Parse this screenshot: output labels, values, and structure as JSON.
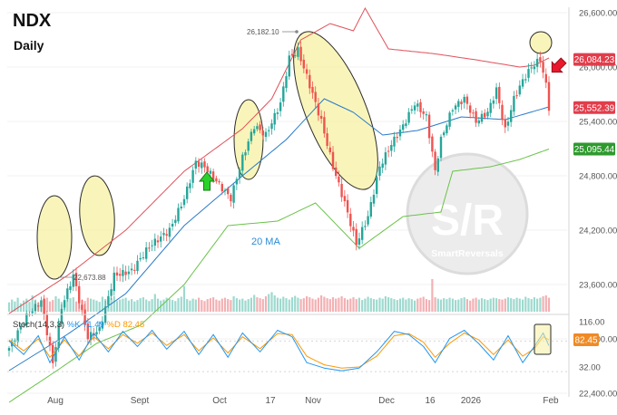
{
  "header": {
    "title": "NDX",
    "subtitle": "Daily"
  },
  "price_ticks": [
    "26,600.00",
    "26,000.00",
    "25,400.00",
    "24,800.00",
    "24,200.00",
    "23,600.00",
    "23,000.00",
    "22,400.00"
  ],
  "stoch_ticks": [
    "116.00",
    "32.00"
  ],
  "x_ticks": [
    "Aug",
    "Sept",
    "Oct",
    "17",
    "Nov",
    "Dec",
    "16",
    "2026",
    "Feb"
  ],
  "price_tags": [
    {
      "value": "26,084.23",
      "color": "#e23d4b"
    },
    {
      "value": "25,552.39",
      "color": "#e23d4b"
    },
    {
      "value": "25,095.44",
      "color": "#2e9a2e"
    }
  ],
  "stoch_tag": {
    "value": "82.45",
    "color": "#f08a24"
  },
  "annotations": {
    "high": "26,182.10",
    "low": "22,673.88",
    "ma_label": "20 MA"
  },
  "stoch": {
    "name": "Stoch(14,3,3)",
    "k_label": "%K 71.49",
    "d_label": "%D 82.45",
    "k_color": "#2196f3",
    "d_color": "#ff9800"
  },
  "watermark": {
    "logo": "S/R",
    "name": "SmartReversals"
  },
  "chart_data": {
    "type": "candlestick",
    "title": "NDX",
    "timeframe": "Daily",
    "y_range": [
      22200,
      26700
    ],
    "stoch_range": [
      20,
      116
    ],
    "x_tick_labels": [
      "Aug",
      "Sept",
      "Oct",
      "17",
      "Nov",
      "Dec",
      "16",
      "2026",
      "Feb"
    ],
    "price_path": [
      [
        0,
        22900
      ],
      [
        6,
        23250
      ],
      [
        11,
        23420
      ],
      [
        15,
        22730
      ],
      [
        18,
        23350
      ],
      [
        22,
        23700
      ],
      [
        27,
        23020
      ],
      [
        31,
        23100
      ],
      [
        36,
        23700
      ],
      [
        42,
        23750
      ],
      [
        48,
        24020
      ],
      [
        55,
        24200
      ],
      [
        60,
        24550
      ],
      [
        64,
        24950
      ],
      [
        67,
        24900
      ],
      [
        72,
        24700
      ],
      [
        76,
        24550
      ],
      [
        80,
        25000
      ],
      [
        84,
        25350
      ],
      [
        88,
        25250
      ],
      [
        93,
        25600
      ],
      [
        96,
        26100
      ],
      [
        99,
        26182.1
      ],
      [
        103,
        25800
      ],
      [
        107,
        25400
      ],
      [
        111,
        24900
      ],
      [
        115,
        24500
      ],
      [
        119,
        24050
      ],
      [
        123,
        24350
      ],
      [
        127,
        24900
      ],
      [
        131,
        25150
      ],
      [
        135,
        25350
      ],
      [
        139,
        25600
      ],
      [
        143,
        25450
      ],
      [
        146,
        24850
      ],
      [
        148,
        25200
      ],
      [
        152,
        25550
      ],
      [
        156,
        25650
      ],
      [
        160,
        25400
      ],
      [
        164,
        25500
      ],
      [
        167,
        25750
      ],
      [
        170,
        25300
      ],
      [
        173,
        25650
      ],
      [
        176,
        25850
      ],
      [
        179,
        26000
      ],
      [
        182,
        26084.23
      ],
      [
        184,
        25800
      ],
      [
        185,
        25552.39
      ]
    ],
    "series": [
      {
        "name": "20 MA",
        "color": "#2a7ac9",
        "points": [
          [
            0,
            22650
          ],
          [
            20,
            23050
          ],
          [
            40,
            23500
          ],
          [
            60,
            24250
          ],
          [
            80,
            24800
          ],
          [
            95,
            25200
          ],
          [
            108,
            25650
          ],
          [
            118,
            25500
          ],
          [
            128,
            25250
          ],
          [
            140,
            25300
          ],
          [
            155,
            25450
          ],
          [
            170,
            25420
          ],
          [
            185,
            25560
          ]
        ]
      },
      {
        "name": "upper band",
        "color": "#e0505a",
        "points": [
          [
            0,
            23280
          ],
          [
            20,
            23700
          ],
          [
            40,
            24200
          ],
          [
            60,
            24850
          ],
          [
            80,
            25320
          ],
          [
            90,
            25650
          ],
          [
            100,
            26300
          ],
          [
            110,
            26480
          ],
          [
            118,
            26400
          ],
          [
            122,
            26650
          ],
          [
            130,
            26200
          ],
          [
            145,
            26150
          ],
          [
            160,
            26080
          ],
          [
            175,
            26000
          ],
          [
            180,
            26020
          ],
          [
            185,
            26100
          ]
        ]
      },
      {
        "name": "lower band",
        "color": "#6ac24a",
        "points": [
          [
            0,
            22300
          ],
          [
            15,
            22620
          ],
          [
            30,
            22950
          ],
          [
            45,
            23150
          ],
          [
            60,
            23600
          ],
          [
            75,
            24250
          ],
          [
            92,
            24300
          ],
          [
            105,
            24500
          ],
          [
            120,
            24000
          ],
          [
            135,
            24350
          ],
          [
            148,
            24400
          ],
          [
            152,
            24850
          ],
          [
            165,
            24900
          ],
          [
            175,
            24980
          ],
          [
            185,
            25095.44
          ]
        ]
      }
    ],
    "stoch_k": [
      [
        0,
        80
      ],
      [
        5,
        55
      ],
      [
        10,
        90
      ],
      [
        14,
        40
      ],
      [
        19,
        88
      ],
      [
        24,
        45
      ],
      [
        29,
        95
      ],
      [
        34,
        60
      ],
      [
        39,
        98
      ],
      [
        44,
        70
      ],
      [
        49,
        100
      ],
      [
        54,
        65
      ],
      [
        60,
        98
      ],
      [
        65,
        55
      ],
      [
        70,
        92
      ],
      [
        75,
        50
      ],
      [
        80,
        95
      ],
      [
        86,
        60
      ],
      [
        92,
        100
      ],
      [
        97,
        88
      ],
      [
        102,
        40
      ],
      [
        108,
        30
      ],
      [
        114,
        25
      ],
      [
        120,
        30
      ],
      [
        126,
        60
      ],
      [
        132,
        98
      ],
      [
        137,
        92
      ],
      [
        142,
        70
      ],
      [
        146,
        40
      ],
      [
        151,
        85
      ],
      [
        156,
        100
      ],
      [
        161,
        75
      ],
      [
        166,
        45
      ],
      [
        171,
        90
      ],
      [
        176,
        40
      ],
      [
        180,
        70
      ],
      [
        183,
        95
      ],
      [
        185,
        71.49
      ]
    ],
    "stoch_d": [
      [
        0,
        82
      ],
      [
        5,
        62
      ],
      [
        10,
        84
      ],
      [
        14,
        50
      ],
      [
        19,
        82
      ],
      [
        24,
        52
      ],
      [
        29,
        88
      ],
      [
        34,
        66
      ],
      [
        39,
        92
      ],
      [
        44,
        76
      ],
      [
        49,
        95
      ],
      [
        54,
        72
      ],
      [
        60,
        92
      ],
      [
        65,
        62
      ],
      [
        70,
        86
      ],
      [
        75,
        58
      ],
      [
        80,
        88
      ],
      [
        86,
        66
      ],
      [
        92,
        94
      ],
      [
        97,
        92
      ],
      [
        102,
        52
      ],
      [
        108,
        36
      ],
      [
        114,
        30
      ],
      [
        120,
        32
      ],
      [
        126,
        52
      ],
      [
        132,
        90
      ],
      [
        137,
        94
      ],
      [
        142,
        78
      ],
      [
        146,
        50
      ],
      [
        151,
        76
      ],
      [
        156,
        95
      ],
      [
        161,
        82
      ],
      [
        166,
        55
      ],
      [
        171,
        82
      ],
      [
        176,
        52
      ],
      [
        180,
        66
      ],
      [
        183,
        88
      ],
      [
        185,
        82.45
      ]
    ],
    "volume": [
      20,
      26,
      22,
      30,
      18,
      24,
      28,
      21,
      35,
      26,
      19,
      23,
      27,
      30,
      22,
      25,
      33,
      28,
      21,
      24,
      26,
      29,
      31,
      22,
      27,
      25,
      23,
      30,
      28,
      26,
      24,
      21,
      32,
      27,
      25,
      29,
      33,
      23,
      26,
      28,
      30,
      24,
      27,
      22,
      25,
      29,
      31,
      26,
      23,
      27,
      38,
      28,
      24,
      26,
      30,
      27,
      25,
      23,
      29,
      32,
      55,
      27,
      24,
      28,
      26,
      30,
      25,
      23,
      27,
      29,
      31,
      26,
      24,
      28,
      30,
      27,
      25,
      33,
      29,
      26,
      28,
      24,
      27,
      30,
      36,
      31,
      29,
      27,
      33,
      38,
      42,
      35,
      30,
      28,
      32,
      29,
      26,
      31,
      34,
      30,
      27,
      29,
      33,
      31,
      28,
      26,
      30,
      35,
      32,
      29,
      27,
      31,
      28,
      30,
      33,
      29,
      26,
      28,
      31,
      27,
      30,
      25,
      28,
      32,
      29,
      27,
      26,
      30,
      28,
      33,
      31,
      29,
      27,
      25,
      28,
      30,
      26,
      29,
      27,
      24,
      28,
      30,
      32,
      27,
      25,
      70,
      31,
      28,
      26,
      29,
      27,
      30,
      28,
      25,
      26,
      29,
      31,
      27,
      24,
      28,
      30,
      26,
      29,
      27,
      25,
      28,
      30,
      29,
      27,
      26,
      28,
      31,
      29,
      27,
      30,
      28,
      26,
      32,
      29,
      27,
      31,
      28,
      30,
      33,
      35,
      30
    ]
  }
}
